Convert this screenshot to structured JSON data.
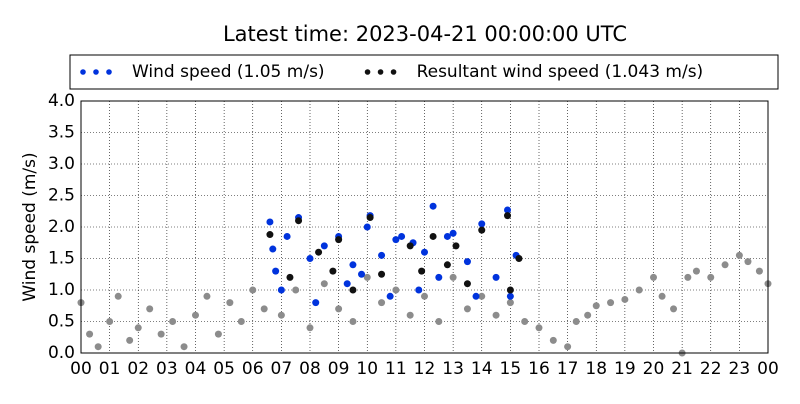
{
  "chart_data": {
    "type": "scatter",
    "title": "Latest time: 2023-04-21 00:00:00 UTC",
    "y_label": "Wind speed (m/s)",
    "xlim": [
      0,
      24
    ],
    "xticks": [
      {
        "value": 0,
        "label": "00"
      },
      {
        "value": 1,
        "label": "01"
      },
      {
        "value": 2,
        "label": "02"
      },
      {
        "value": 3,
        "label": "03"
      },
      {
        "value": 4,
        "label": "04"
      },
      {
        "value": 5,
        "label": "05"
      },
      {
        "value": 6,
        "label": "06"
      },
      {
        "value": 7,
        "label": "07"
      },
      {
        "value": 8,
        "label": "08"
      },
      {
        "value": 9,
        "label": "09"
      },
      {
        "value": 10,
        "label": "10"
      },
      {
        "value": 11,
        "label": "11"
      },
      {
        "value": 12,
        "label": "12"
      },
      {
        "value": 13,
        "label": "13"
      },
      {
        "value": 14,
        "label": "14"
      },
      {
        "value": 15,
        "label": "15"
      },
      {
        "value": 16,
        "label": "16"
      },
      {
        "value": 17,
        "label": "17"
      },
      {
        "value": 18,
        "label": "18"
      },
      {
        "value": 19,
        "label": "19"
      },
      {
        "value": 20,
        "label": "20"
      },
      {
        "value": 21,
        "label": "21"
      },
      {
        "value": 22,
        "label": "22"
      },
      {
        "value": 23,
        "label": "23"
      },
      {
        "value": 24,
        "label": "00"
      }
    ],
    "ylim": [
      0,
      4
    ],
    "yticks": [
      {
        "value": 0,
        "label": "0.0"
      },
      {
        "value": 0.5,
        "label": "0.5"
      },
      {
        "value": 1,
        "label": "1.0"
      },
      {
        "value": 1.5,
        "label": "1.5"
      },
      {
        "value": 2,
        "label": "2.0"
      },
      {
        "value": 2.5,
        "label": "2.5"
      },
      {
        "value": 3,
        "label": "3.0"
      },
      {
        "value": 3.5,
        "label": "3.5"
      },
      {
        "value": 4,
        "label": "4.0"
      }
    ],
    "grid": true,
    "series": [
      {
        "color": "#8c8c8c",
        "x": [
          0.0,
          0.3,
          0.6,
          1.0,
          1.3,
          1.7,
          2.0,
          2.4,
          2.8,
          3.2,
          3.6,
          4.0,
          4.4,
          4.8,
          5.2,
          5.6,
          6.0,
          6.4,
          7.0,
          7.5,
          8.0,
          8.5,
          9.0,
          9.5,
          10.0,
          10.5,
          11.0,
          11.5,
          12.0,
          12.5,
          13.0,
          13.5,
          14.0,
          14.5,
          15.0,
          15.5,
          16.0,
          16.5,
          17.0,
          17.3,
          17.7,
          18.0,
          18.5,
          19.0,
          19.5,
          20.0,
          20.3,
          20.7,
          21.0,
          21.2,
          21.5,
          22.0,
          22.5,
          23.0,
          23.3,
          23.7,
          24.0
        ],
        "values": [
          0.8,
          0.3,
          0.1,
          0.5,
          0.9,
          0.2,
          0.4,
          0.7,
          0.3,
          0.5,
          0.1,
          0.6,
          0.9,
          0.3,
          0.8,
          0.5,
          1.0,
          0.7,
          0.6,
          1.0,
          0.4,
          1.1,
          0.7,
          0.5,
          1.2,
          0.8,
          1.0,
          0.6,
          0.9,
          0.5,
          1.2,
          0.7,
          0.9,
          0.6,
          0.8,
          0.5,
          0.4,
          0.2,
          0.1,
          0.5,
          0.6,
          0.75,
          0.8,
          0.85,
          1.0,
          1.2,
          0.9,
          0.7,
          0.0,
          1.2,
          1.3,
          1.2,
          1.4,
          1.55,
          1.45,
          1.3,
          1.1
        ]
      },
      {
        "name": "Wind speed (1.05 m/s)",
        "color": "#0033dd",
        "x": [
          6.6,
          6.7,
          7.2,
          7.6,
          8.0,
          8.5,
          9.0,
          9.5,
          10.0,
          10.1,
          10.5,
          11.0,
          11.2,
          11.6,
          12.0,
          12.3,
          12.8,
          13.0,
          13.5,
          14.0,
          14.9,
          15.2,
          7.0,
          8.2,
          9.3,
          10.8,
          11.8,
          12.5,
          13.8,
          14.5,
          15.0,
          6.8,
          9.8
        ],
        "values": [
          2.08,
          1.65,
          1.85,
          2.15,
          1.5,
          1.7,
          1.85,
          1.4,
          2.0,
          2.18,
          1.55,
          1.8,
          1.85,
          1.75,
          1.6,
          2.33,
          1.85,
          1.9,
          1.45,
          2.05,
          2.27,
          1.55,
          1.0,
          0.8,
          1.1,
          0.9,
          1.0,
          1.2,
          0.9,
          1.2,
          0.9,
          1.3,
          1.25
        ]
      },
      {
        "name": "Resultant wind speed (1.043 m/s)",
        "color": "#111111",
        "x": [
          6.6,
          7.6,
          8.3,
          9.0,
          10.1,
          11.5,
          12.3,
          13.1,
          14.0,
          14.9,
          15.3,
          7.3,
          8.8,
          10.5,
          11.9,
          13.5,
          15.0,
          9.5,
          12.8
        ],
        "values": [
          1.88,
          2.1,
          1.6,
          1.8,
          2.15,
          1.7,
          1.85,
          1.7,
          1.95,
          2.18,
          1.5,
          1.2,
          1.3,
          1.25,
          1.3,
          1.1,
          1.0,
          1.0,
          1.4
        ]
      }
    ]
  }
}
